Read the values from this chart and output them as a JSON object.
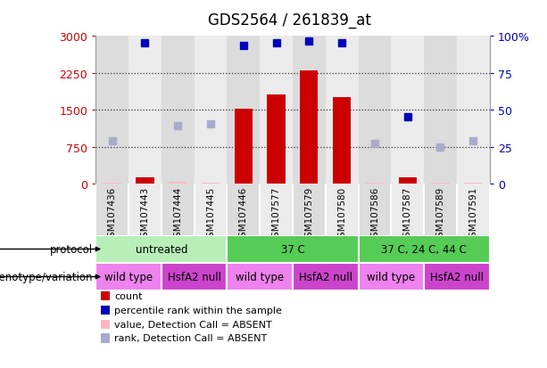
{
  "title": "GDS2564 / 261839_at",
  "samples": [
    "GSM107436",
    "GSM107443",
    "GSM107444",
    "GSM107445",
    "GSM107446",
    "GSM107577",
    "GSM107579",
    "GSM107580",
    "GSM107586",
    "GSM107587",
    "GSM107589",
    "GSM107591"
  ],
  "count_values": [
    null,
    120,
    null,
    null,
    1520,
    1820,
    2300,
    1750,
    null,
    130,
    null,
    null
  ],
  "count_absent": [
    15,
    null,
    30,
    25,
    null,
    null,
    null,
    null,
    20,
    null,
    10,
    18
  ],
  "percentile_values": [
    null,
    2870,
    null,
    null,
    2810,
    2870,
    2900,
    2860,
    null,
    1350,
    null,
    null
  ],
  "rank_absent": [
    870,
    null,
    1170,
    1220,
    null,
    null,
    null,
    null,
    820,
    null,
    740,
    870
  ],
  "ylim_left": [
    0,
    3000
  ],
  "ylim_right": [
    0,
    100
  ],
  "yticks_left": [
    0,
    750,
    1500,
    2250,
    3000
  ],
  "yticks_right": [
    0,
    25,
    50,
    75,
    100
  ],
  "protocol_groups": [
    {
      "label": "untreated",
      "start": 0,
      "end": 4,
      "color": "#B8EEB8"
    },
    {
      "label": "37 C",
      "start": 4,
      "end": 8,
      "color": "#55CC55"
    },
    {
      "label": "37 C, 24 C, 44 C",
      "start": 8,
      "end": 12,
      "color": "#55CC55"
    }
  ],
  "genotype_groups": [
    {
      "label": "wild type",
      "start": 0,
      "end": 2,
      "color": "#EE82EE"
    },
    {
      "label": "HsfA2 null",
      "start": 2,
      "end": 4,
      "color": "#CC44CC"
    },
    {
      "label": "wild type",
      "start": 4,
      "end": 6,
      "color": "#EE82EE"
    },
    {
      "label": "HsfA2 null",
      "start": 6,
      "end": 8,
      "color": "#CC44CC"
    },
    {
      "label": "wild type",
      "start": 8,
      "end": 10,
      "color": "#EE82EE"
    },
    {
      "label": "HsfA2 null",
      "start": 10,
      "end": 12,
      "color": "#CC44CC"
    }
  ],
  "bar_color": "#CC0000",
  "absent_bar_color": "#FFB6C1",
  "rank_color": "#0000BB",
  "rank_absent_color": "#AAAACC",
  "bg_color": "#FFFFFF",
  "col_bg_even": "#DCDCDC",
  "col_bg_odd": "#EBEBEB",
  "legend_items": [
    {
      "color": "#CC0000",
      "label": "count"
    },
    {
      "color": "#0000BB",
      "label": "percentile rank within the sample"
    },
    {
      "color": "#FFB6C1",
      "label": "value, Detection Call = ABSENT"
    },
    {
      "color": "#AAAACC",
      "label": "rank, Detection Call = ABSENT"
    }
  ]
}
